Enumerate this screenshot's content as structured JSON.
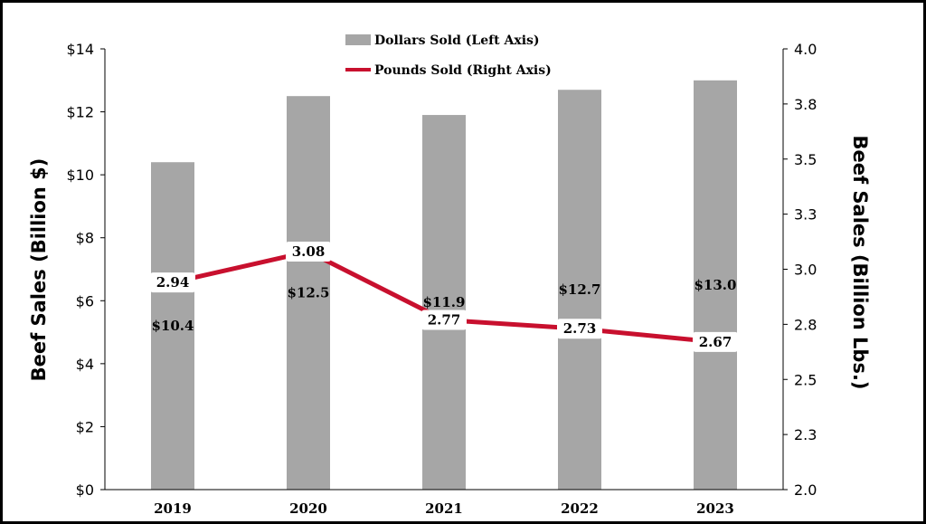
{
  "chart_data": {
    "type": "bar",
    "categories": [
      "2019",
      "2020",
      "2021",
      "2022",
      "2023"
    ],
    "series": [
      {
        "name": "Dollars Sold (Left Axis)",
        "type": "bar",
        "axis": "left",
        "values": [
          10.4,
          12.5,
          11.9,
          12.7,
          13.0
        ],
        "labels": [
          "$10.4",
          "$12.5",
          "$11.9",
          "$12.7",
          "$13.0"
        ],
        "color": "#a6a6a6"
      },
      {
        "name": "Pounds Sold (Right Axis)",
        "type": "line",
        "axis": "right",
        "values": [
          2.94,
          3.08,
          2.77,
          2.73,
          2.67
        ],
        "labels": [
          "2.94",
          "3.08",
          "2.77",
          "2.73",
          "2.67"
        ],
        "color": "#c8102e"
      }
    ],
    "ylabel": "Beef Sales (Billion $)",
    "y2label": "Beef Sales (Billion Lbs.)",
    "ylim": [
      0,
      14
    ],
    "y2lim": [
      2.0,
      4.0
    ],
    "yticks": [
      "$0",
      "$2",
      "$4",
      "$6",
      "$8",
      "$10",
      "$12",
      "$14"
    ],
    "y2ticks": [
      "2.0",
      "2.3",
      "2.5",
      "2.8",
      "3.0",
      "3.3",
      "3.5",
      "3.8",
      "4.0"
    ],
    "legend_position": "top-center",
    "grid": false
  }
}
